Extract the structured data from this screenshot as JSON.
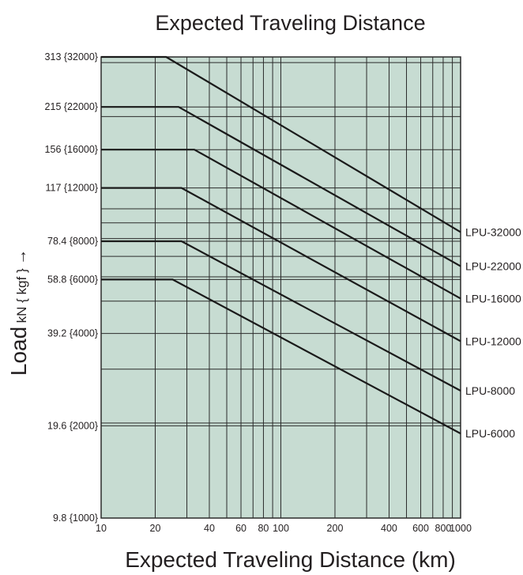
{
  "chart_data": {
    "type": "line",
    "title": "Expected Traveling Distance",
    "xlabel": "Expected Traveling Distance (km)",
    "ylabel": {
      "main": "Load",
      "unit": "kN { kgf }",
      "arrow": "→"
    },
    "x_scale": "log",
    "y_scale": "log",
    "xlim": [
      10,
      1000
    ],
    "ylim": [
      9.8,
      313
    ],
    "x_ticks": [
      {
        "value": 10,
        "label": "10"
      },
      {
        "value": 20,
        "label": "20"
      },
      {
        "value": 40,
        "label": "40"
      },
      {
        "value": 60,
        "label": "60"
      },
      {
        "value": 80,
        "label": "80"
      },
      {
        "value": 100,
        "label": "100"
      },
      {
        "value": 200,
        "label": "200"
      },
      {
        "value": 400,
        "label": "400"
      },
      {
        "value": 600,
        "label": "600"
      },
      {
        "value": 800,
        "label": "800"
      },
      {
        "value": 1000,
        "label": "1000"
      }
    ],
    "x_minor_gridlines": [
      30,
      50,
      70,
      90,
      300,
      500,
      700,
      900
    ],
    "y_ticks": [
      {
        "value": 313,
        "label": "313 {32000}"
      },
      {
        "value": 215,
        "label": "215 {22000}"
      },
      {
        "value": 156,
        "label": "156 {16000}"
      },
      {
        "value": 117,
        "label": "117 {12000}"
      },
      {
        "value": 78.4,
        "label": "78.4 {8000}"
      },
      {
        "value": 58.8,
        "label": "58.8 {6000}"
      },
      {
        "value": 39.2,
        "label": "39.2 {4000}"
      },
      {
        "value": 19.6,
        "label": "19.6 {2000}"
      },
      {
        "value": 9.8,
        "label": "9.8 {1000}"
      }
    ],
    "y_minor_gridlines": [
      300,
      200,
      100,
      90,
      80,
      70,
      60,
      50,
      30,
      20
    ],
    "grid": true,
    "colors": {
      "plot_background": "#c7dcd2",
      "grid": "#2b2b2b",
      "lines": "#1a1a1a",
      "text": "#231f20"
    },
    "series": [
      {
        "name": "LPU-32000",
        "points": [
          [
            10,
            313
          ],
          [
            23,
            313
          ],
          [
            1000,
            84
          ]
        ]
      },
      {
        "name": "LPU-22000",
        "points": [
          [
            10,
            215
          ],
          [
            27,
            215
          ],
          [
            1000,
            65
          ]
        ]
      },
      {
        "name": "LPU-16000",
        "points": [
          [
            10,
            156
          ],
          [
            33,
            156
          ],
          [
            1000,
            51
          ]
        ]
      },
      {
        "name": "LPU-12000",
        "points": [
          [
            10,
            117
          ],
          [
            28,
            117
          ],
          [
            1000,
            37
          ]
        ]
      },
      {
        "name": "LPU-8000",
        "points": [
          [
            10,
            78.4
          ],
          [
            28,
            78.4
          ],
          [
            1000,
            25.5
          ]
        ]
      },
      {
        "name": "LPU-6000",
        "points": [
          [
            10,
            58.8
          ],
          [
            25,
            58.8
          ],
          [
            1000,
            18.5
          ]
        ]
      }
    ]
  }
}
